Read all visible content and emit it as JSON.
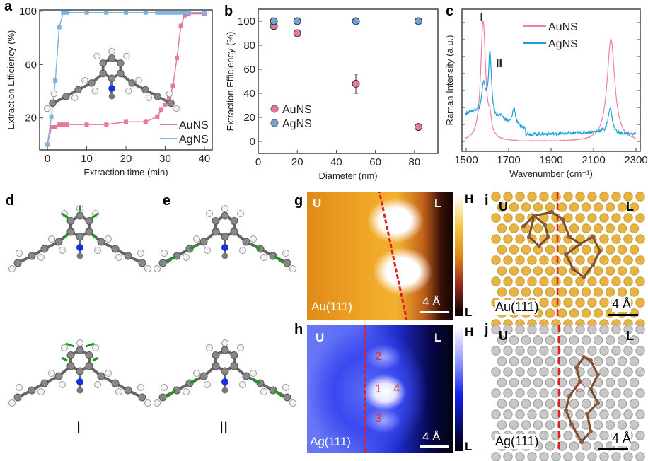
{
  "panel_labels": {
    "a": "a",
    "b": "b",
    "c": "c",
    "d": "d",
    "e": "e",
    "g": "g",
    "h": "h",
    "i": "i",
    "j": "j"
  },
  "colors": {
    "au": "#e8789a",
    "ag": "#5aa7d6",
    "ag_raman": "#1fa0d8",
    "au_raman": "#f07fa0",
    "stm_au_mid": "#f0a020",
    "stm_ag_mid": "#3a50f0",
    "dashed_line": "#e02020"
  },
  "chart_data": [
    {
      "id": "a",
      "type": "line",
      "xlabel": "Extraction time (min)",
      "ylabel": "Extraction Efficiency (%)",
      "xlim": [
        -2,
        42
      ],
      "ylim": [
        -4,
        101
      ],
      "xticks": [
        0,
        10,
        20,
        30,
        40
      ],
      "yticks": [
        20,
        60,
        100
      ],
      "legend": "bottom-right",
      "series": [
        {
          "name": "AuNS",
          "color": "#e8789a",
          "x": [
            0,
            1,
            2,
            3,
            4,
            5,
            10,
            15,
            20,
            25,
            28,
            29,
            30,
            31,
            32,
            33,
            34,
            35,
            36,
            40
          ],
          "y": [
            0,
            13,
            13,
            15,
            15,
            15,
            15,
            15,
            17,
            17,
            21,
            26,
            30,
            35,
            44,
            65,
            89,
            97,
            98,
            98
          ]
        },
        {
          "name": "AgNS",
          "color": "#7fb4e0",
          "x": [
            0,
            1,
            2,
            3,
            4,
            5,
            10,
            15,
            20,
            25,
            28,
            29,
            30,
            31,
            32,
            33,
            34,
            35,
            36,
            40
          ],
          "y": [
            0,
            21,
            48,
            88,
            99,
            99,
            99,
            99,
            99,
            99,
            99,
            99,
            99,
            99,
            99,
            99,
            99,
            99,
            99,
            99
          ]
        }
      ]
    },
    {
      "id": "b",
      "type": "scatter",
      "xlabel": "Diameter (nm)",
      "ylabel": "Extraction Efficiency (%)",
      "xlim": [
        0,
        92
      ],
      "ylim": [
        -10,
        110
      ],
      "xticks": [
        0,
        20,
        40,
        60,
        80
      ],
      "yticks": [
        0,
        20,
        40,
        60,
        80,
        100
      ],
      "legend": "bottom-left",
      "series": [
        {
          "name": "AuNS",
          "color": "#e8789a",
          "x": [
            8,
            20,
            50,
            82
          ],
          "y": [
            96,
            90,
            48,
            12
          ],
          "err": [
            1,
            2,
            8,
            1
          ]
        },
        {
          "name": "AgNS",
          "color": "#6fa3d6",
          "x": [
            8,
            20,
            50,
            82
          ],
          "y": [
            100,
            100,
            100,
            100
          ],
          "err": [
            0,
            0,
            0,
            0
          ]
        }
      ]
    },
    {
      "id": "c",
      "type": "line",
      "xlabel": "Wavenumber (cm⁻¹)",
      "ylabel": "Raman Intensity (a.u.)",
      "xlim": [
        1480,
        2320
      ],
      "ylim": [
        -0.08,
        1.1
      ],
      "xticks": [
        1500,
        1700,
        1900,
        2100,
        2300
      ],
      "legend": "top-center",
      "annotations": [
        {
          "text": "I",
          "x": 1565,
          "y": 1.0
        },
        {
          "text": "II",
          "x": 1640,
          "y": 0.62
        }
      ],
      "series": [
        {
          "name": "AuNS",
          "color": "#f07fa0",
          "baseline": 0,
          "peaks": [
            {
              "x": 1580,
              "h": 1.0,
              "w": 14
            },
            {
              "x": 1612,
              "h": 0.12,
              "w": 8
            },
            {
              "x": 2182,
              "h": 0.85,
              "w": 22
            }
          ]
        },
        {
          "name": "AgNS",
          "color": "#1fa0d8",
          "baseline": 0.08,
          "peaks": [
            {
              "x": 1520,
              "h": 0.08,
              "w": 60
            },
            {
              "x": 1582,
              "h": 0.3,
              "w": 14
            },
            {
              "x": 1612,
              "h": 0.55,
              "w": 9
            },
            {
              "x": 1665,
              "h": 0.08,
              "w": 30
            },
            {
              "x": 1725,
              "h": 0.15,
              "w": 10
            },
            {
              "x": 2178,
              "h": 0.22,
              "w": 12
            }
          ]
        }
      ]
    }
  ],
  "modes": {
    "I": "I",
    "II": "II"
  },
  "stm": {
    "g": {
      "U": "U",
      "L": "L",
      "substrate": "Au(111)",
      "scale": "4 Å",
      "cbar_high": "H",
      "cbar_low": "L"
    },
    "h": {
      "U": "U",
      "L": "L",
      "substrate": "Ag(111)",
      "scale": "4 Å",
      "cbar_high": "H",
      "cbar_low": "L",
      "spots": [
        "1",
        "2",
        "3",
        "4"
      ]
    },
    "i": {
      "U": "U",
      "L": "L",
      "substrate": "Au(111)",
      "scale": "4 Å"
    },
    "j": {
      "U": "U",
      "L": "L",
      "substrate": "Ag(111)",
      "scale": "4 Å"
    }
  }
}
